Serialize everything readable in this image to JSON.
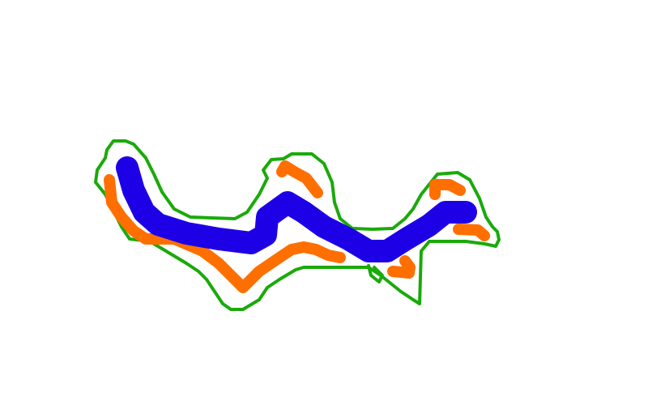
{
  "canvas": {
    "background": "#ffffff"
  },
  "strokes": {
    "outline": {
      "label": "",
      "color": "#1aaa0a",
      "icon": "freehand-outline"
    },
    "center_line": {
      "label": "",
      "color": "#1e00e6",
      "icon": "freehand-thick-stroke"
    },
    "side_marks": {
      "label": "",
      "color": "#ff6f00",
      "icon": "freehand-stroke"
    }
  }
}
